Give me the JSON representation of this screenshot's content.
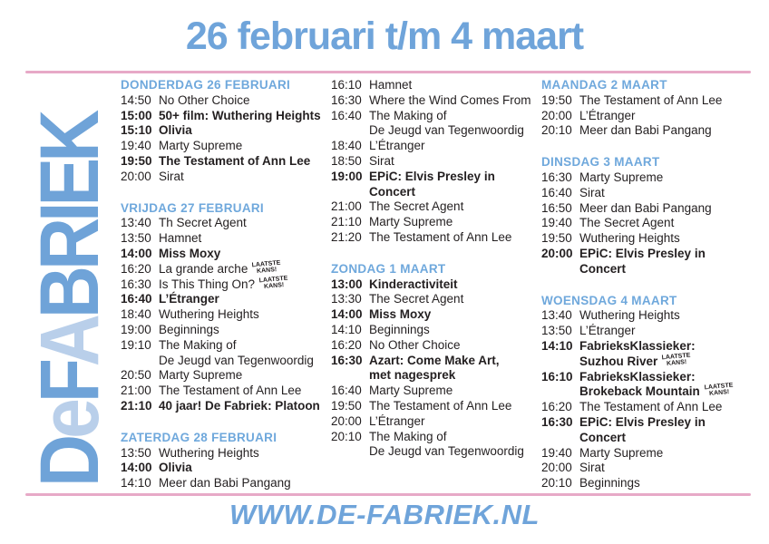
{
  "title": "26 februari t/m 4 maart",
  "footer": {
    "url": "WWW.DE-FABRIEK.NL"
  },
  "badge": {
    "line1": "LAATSTE",
    "line2": "KANS!"
  },
  "colors": {
    "accent_blue": "#6FA4DA",
    "header_blue": "#6FA8DC",
    "logo_light_blue": "#B9CFEA",
    "pink_divider": "#E7A9C7",
    "text": "#231F20"
  },
  "logo": {
    "text": "DeFABRIEK",
    "letters": [
      {
        "ch": "D",
        "shade": "dark"
      },
      {
        "ch": "e",
        "shade": "light"
      },
      {
        "ch": "F",
        "shade": "dark"
      },
      {
        "ch": "A",
        "shade": "light"
      },
      {
        "ch": "B",
        "shade": "dark"
      },
      {
        "ch": "R",
        "shade": "dark"
      },
      {
        "ch": "I",
        "shade": "dark"
      },
      {
        "ch": "E",
        "shade": "dark"
      },
      {
        "ch": "K",
        "shade": "dark"
      }
    ]
  },
  "schedule": {
    "columns": [
      [
        {
          "header": "DONDERDAG 26 FEBRUARI",
          "items": [
            {
              "time": "14:50",
              "lines": [
                {
                  "text": "No Other Choice"
                }
              ]
            },
            {
              "time": "15:00",
              "bold": true,
              "lines": [
                {
                  "text": "50+ film: Wuthering Heights"
                }
              ]
            },
            {
              "time": "15:10",
              "bold": true,
              "lines": [
                {
                  "text": "Olivia"
                }
              ]
            },
            {
              "time": "19:40",
              "lines": [
                {
                  "text": "Marty Supreme"
                }
              ]
            },
            {
              "time": "19:50",
              "bold": true,
              "lines": [
                {
                  "text": "The Testament of Ann Lee"
                }
              ]
            },
            {
              "time": "20:00",
              "lines": [
                {
                  "text": "Sirat"
                }
              ]
            }
          ]
        },
        {
          "header": "VRIJDAG 27 FEBRUARI",
          "items": [
            {
              "time": "13:40",
              "lines": [
                {
                  "text": "Th Secret Agent"
                }
              ]
            },
            {
              "time": "13:50",
              "lines": [
                {
                  "text": "Hamnet"
                }
              ]
            },
            {
              "time": "14:00",
              "bold": true,
              "lines": [
                {
                  "text": "Miss Moxy"
                }
              ]
            },
            {
              "time": "16:20",
              "lines": [
                {
                  "text": "La grande arche",
                  "badge": true
                }
              ]
            },
            {
              "time": "16:30",
              "lines": [
                {
                  "text": "Is This Thing On?",
                  "badge": true
                }
              ]
            },
            {
              "time": "16:40",
              "bold": true,
              "lines": [
                {
                  "text": "L’Étranger"
                }
              ]
            },
            {
              "time": "18:40",
              "lines": [
                {
                  "text": "Wuthering Heights"
                }
              ]
            },
            {
              "time": "19:00",
              "lines": [
                {
                  "text": "Beginnings"
                }
              ]
            },
            {
              "time": "19:10",
              "lines": [
                {
                  "text": "The Making of"
                },
                {
                  "text": "De Jeugd van Tegenwoordig"
                }
              ]
            },
            {
              "time": "20:50",
              "lines": [
                {
                  "text": "Marty Supreme"
                }
              ]
            },
            {
              "time": "21:00",
              "lines": [
                {
                  "text": "The Testament of Ann Lee"
                }
              ]
            },
            {
              "time": "21:10",
              "bold": true,
              "lines": [
                {
                  "text": "40 jaar! De Fabriek: Platoon"
                }
              ]
            }
          ]
        },
        {
          "header": "ZATERDAG 28 FEBRUARI",
          "items": [
            {
              "time": "13:50",
              "lines": [
                {
                  "text": "Wuthering Heights"
                }
              ]
            },
            {
              "time": "14:00",
              "bold": true,
              "lines": [
                {
                  "text": "Olivia"
                }
              ]
            },
            {
              "time": "14:10",
              "lines": [
                {
                  "text": "Meer dan Babi Pangang"
                }
              ]
            }
          ]
        }
      ],
      [
        {
          "header": null,
          "items": [
            {
              "time": "16:10",
              "lines": [
                {
                  "text": "Hamnet"
                }
              ]
            },
            {
              "time": "16:30",
              "lines": [
                {
                  "text": "Where the Wind Comes From"
                }
              ]
            },
            {
              "time": "16:40",
              "lines": [
                {
                  "text": "The Making of"
                },
                {
                  "text": "De Jeugd van Tegenwoordig"
                }
              ]
            },
            {
              "time": "18:40",
              "lines": [
                {
                  "text": "L’Étranger"
                }
              ]
            },
            {
              "time": "18:50",
              "lines": [
                {
                  "text": "Sirat"
                }
              ]
            },
            {
              "time": "19:00",
              "bold": true,
              "lines": [
                {
                  "text": "EPiC: Elvis Presley in Concert"
                }
              ]
            },
            {
              "time": "21:00",
              "lines": [
                {
                  "text": "The Secret Agent"
                }
              ]
            },
            {
              "time": "21:10",
              "lines": [
                {
                  "text": "Marty Supreme"
                }
              ]
            },
            {
              "time": "21:20",
              "lines": [
                {
                  "text": "The Testament of Ann Lee"
                }
              ]
            }
          ]
        },
        {
          "header": "ZONDAG 1 MAART",
          "items": [
            {
              "time": "13:00",
              "bold": true,
              "lines": [
                {
                  "text": "Kinderactiviteit"
                }
              ]
            },
            {
              "time": "13:30",
              "lines": [
                {
                  "text": "The Secret Agent"
                }
              ]
            },
            {
              "time": "14:00",
              "bold": true,
              "lines": [
                {
                  "text": "Miss Moxy"
                }
              ]
            },
            {
              "time": "14:10",
              "lines": [
                {
                  "text": "Beginnings"
                }
              ]
            },
            {
              "time": "16:20",
              "lines": [
                {
                  "text": "No Other Choice"
                }
              ]
            },
            {
              "time": "16:30",
              "bold": true,
              "lines": [
                {
                  "text": "Azart: Come Make Art,"
                },
                {
                  "text": "met nagesprek"
                }
              ]
            },
            {
              "time": "16:40",
              "lines": [
                {
                  "text": "Marty Supreme"
                }
              ]
            },
            {
              "time": "19:50",
              "lines": [
                {
                  "text": "The Testament of Ann Lee"
                }
              ]
            },
            {
              "time": "20:00",
              "lines": [
                {
                  "text": "L’Étranger"
                }
              ]
            },
            {
              "time": "20:10",
              "lines": [
                {
                  "text": "The Making of"
                },
                {
                  "text": "De Jeugd van Tegenwoordig"
                }
              ]
            }
          ]
        }
      ],
      [
        {
          "header": "MAANDAG 2 MAART",
          "items": [
            {
              "time": "19:50",
              "lines": [
                {
                  "text": "The Testament of Ann Lee"
                }
              ]
            },
            {
              "time": "20:00",
              "lines": [
                {
                  "text": "L’Étranger"
                }
              ]
            },
            {
              "time": "20:10",
              "lines": [
                {
                  "text": "Meer dan Babi Pangang"
                }
              ]
            }
          ]
        },
        {
          "header": "DINSDAG 3 MAART",
          "items": [
            {
              "time": "16:30",
              "lines": [
                {
                  "text": "Marty Supreme"
                }
              ]
            },
            {
              "time": "16:40",
              "lines": [
                {
                  "text": "Sirat"
                }
              ]
            },
            {
              "time": "16:50",
              "lines": [
                {
                  "text": "Meer dan Babi Pangang"
                }
              ]
            },
            {
              "time": "19:40",
              "lines": [
                {
                  "text": "The Secret Agent"
                }
              ]
            },
            {
              "time": "19:50",
              "lines": [
                {
                  "text": "Wuthering Heights"
                }
              ]
            },
            {
              "time": "20:00",
              "bold": true,
              "lines": [
                {
                  "text": "EPiC: Elvis Presley in Concert"
                }
              ]
            }
          ]
        },
        {
          "header": "WOENSDAG 4 MAART",
          "items": [
            {
              "time": "13:40",
              "lines": [
                {
                  "text": "Wuthering Heights"
                }
              ]
            },
            {
              "time": "13:50",
              "lines": [
                {
                  "text": "L’Étranger"
                }
              ]
            },
            {
              "time": "14:10",
              "bold": true,
              "lines": [
                {
                  "text": "FabrieksKlassieker:"
                },
                {
                  "text": "Suzhou River",
                  "badge": true
                }
              ]
            },
            {
              "time": "16:10",
              "bold": true,
              "lines": [
                {
                  "text": "FabrieksKlassieker:"
                },
                {
                  "text": "Brokeback Mountain",
                  "badge": true
                }
              ]
            },
            {
              "time": "16:20",
              "lines": [
                {
                  "text": "The Testament of Ann Lee"
                }
              ]
            },
            {
              "time": "16:30",
              "bold": true,
              "lines": [
                {
                  "text": "EPiC: Elvis Presley in Concert"
                }
              ]
            },
            {
              "time": "19:40",
              "lines": [
                {
                  "text": "Marty Supreme"
                }
              ]
            },
            {
              "time": "20:00",
              "lines": [
                {
                  "text": "Sirat"
                }
              ]
            },
            {
              "time": "20:10",
              "lines": [
                {
                  "text": "Beginnings"
                }
              ]
            }
          ]
        }
      ]
    ]
  }
}
